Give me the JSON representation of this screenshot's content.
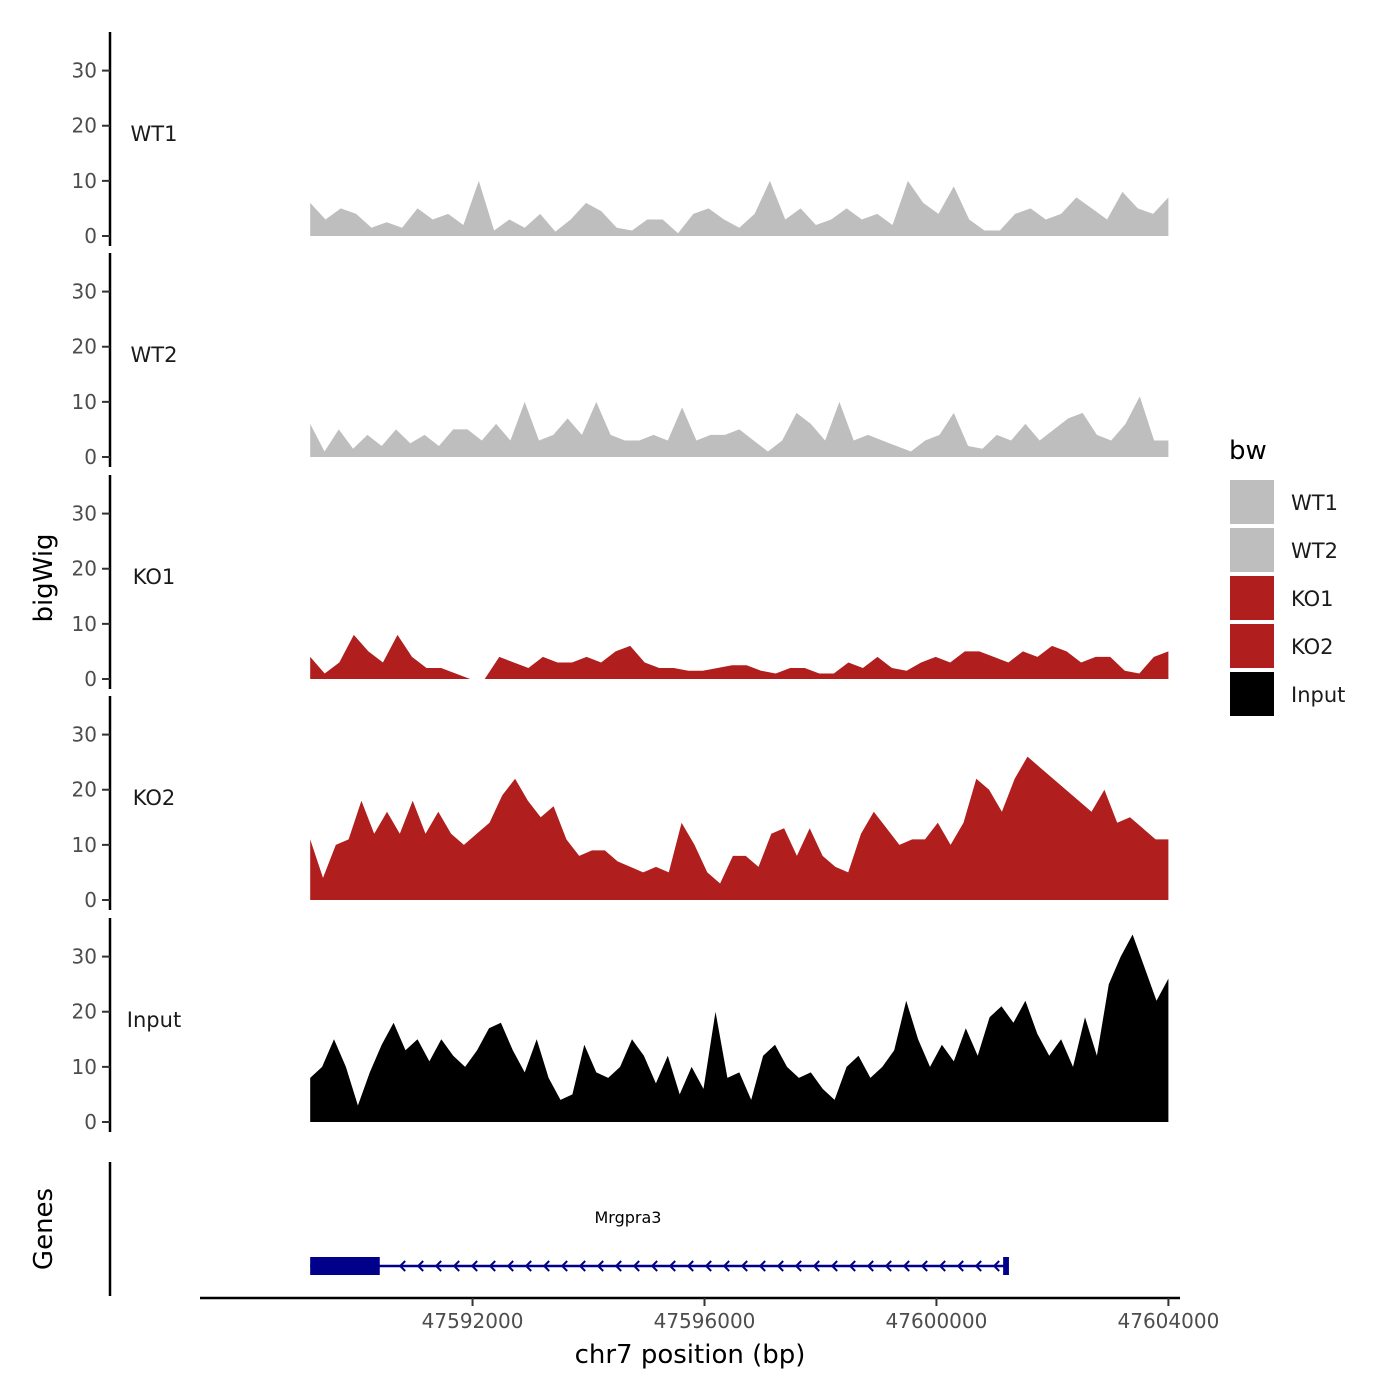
{
  "colors": {
    "WT1": "#bebebe",
    "WT2": "#bebebe",
    "KO1": "#b01e1e",
    "KO2": "#b01e1e",
    "Input": "#000000",
    "gene": "#00008b",
    "axis": "#000000"
  },
  "chart_data": {
    "type": "area",
    "title": "",
    "xlabel": "chr7 position (bp)",
    "ylabel": "bigWig",
    "genes_label": "Genes",
    "x_range": [
      47587300,
      47604200
    ],
    "y_range": [
      0,
      37
    ],
    "x_ticks": [
      47592000,
      47596000,
      47600000,
      47604000
    ],
    "x_tick_labels": [
      "47592000",
      "47596000",
      "47600000",
      "47604000"
    ],
    "y_ticks": [
      0,
      10,
      20,
      30
    ],
    "y_tick_labels": [
      "0",
      "10",
      "20",
      "30"
    ],
    "track_start": 47589200,
    "track_end": 47604000,
    "legend": {
      "title": "bw",
      "entries": [
        "WT1",
        "WT2",
        "KO1",
        "KO2",
        "Input"
      ]
    },
    "series": [
      {
        "name": "WT1",
        "values": [
          6,
          3,
          5,
          4,
          1.5,
          2.5,
          1.5,
          5,
          3,
          4,
          2,
          10,
          1,
          3,
          1.5,
          4,
          0.8,
          3,
          6,
          4.5,
          1.5,
          1,
          3,
          3,
          0.5,
          4,
          5,
          3,
          1.5,
          4,
          10,
          3,
          5,
          2,
          3,
          5,
          3,
          4,
          2,
          10,
          6,
          4,
          9,
          3,
          1,
          1,
          4,
          5,
          3,
          4,
          7,
          5,
          3,
          8,
          5,
          4,
          7
        ]
      },
      {
        "name": "WT2",
        "values": [
          6,
          1,
          5,
          1.5,
          4,
          2,
          5,
          2.5,
          4,
          2,
          5,
          5,
          3,
          6,
          3,
          10,
          3,
          4,
          7,
          4,
          10,
          4,
          3,
          3,
          4,
          3,
          9,
          3,
          4,
          4,
          5,
          3,
          1,
          3,
          8,
          6,
          3,
          10,
          3,
          4,
          3,
          2,
          1,
          3,
          4,
          8,
          2,
          1.5,
          4,
          3,
          6,
          3,
          5,
          7,
          8,
          4,
          3,
          6,
          11,
          3,
          3
        ]
      },
      {
        "name": "KO1",
        "values": [
          4,
          1,
          3,
          8,
          5,
          3,
          8,
          4,
          2,
          2,
          1,
          0,
          0,
          4,
          3,
          2,
          4,
          3,
          3,
          4,
          3,
          5,
          6,
          3,
          2,
          2,
          1.5,
          1.5,
          2,
          2.5,
          2.5,
          1.5,
          1,
          2,
          2,
          1,
          1,
          3,
          2,
          4,
          2,
          1.5,
          3,
          4,
          3,
          5,
          5,
          4,
          3,
          5,
          4,
          6,
          5,
          3,
          4,
          4,
          1.5,
          1,
          4,
          5
        ]
      },
      {
        "name": "KO2",
        "values": [
          11,
          4,
          10,
          11,
          18,
          12,
          16,
          12,
          18,
          12,
          16,
          12,
          10,
          12,
          14,
          19,
          22,
          18,
          15,
          17,
          11,
          8,
          9,
          9,
          7,
          6,
          5,
          6,
          5,
          14,
          10,
          5,
          3,
          8,
          8,
          6,
          12,
          13,
          8,
          13,
          8,
          6,
          5,
          12,
          16,
          13,
          10,
          11,
          11,
          14,
          10,
          14,
          22,
          20,
          16,
          22,
          26,
          24,
          22,
          20,
          18,
          16,
          20,
          14,
          15,
          13,
          11,
          11
        ]
      },
      {
        "name": "Input",
        "values": [
          8,
          10,
          15,
          10,
          3,
          9,
          14,
          18,
          13,
          15,
          11,
          15,
          12,
          10,
          13,
          17,
          18,
          13,
          9,
          15,
          8,
          4,
          5,
          14,
          9,
          8,
          10,
          15,
          12,
          7,
          12,
          5,
          10,
          6,
          20,
          8,
          9,
          4,
          12,
          14,
          10,
          8,
          9,
          6,
          4,
          10,
          12,
          8,
          10,
          13,
          22,
          15,
          10,
          14,
          11,
          17,
          12,
          19,
          21,
          18,
          22,
          16,
          12,
          15,
          10,
          19,
          12,
          25,
          30,
          34,
          28,
          22,
          26
        ]
      }
    ],
    "gene": {
      "name": "Mrgpra3",
      "start": 47589200,
      "end": 47601200,
      "strand": "-",
      "exons": [
        [
          47589200,
          47590400
        ],
        [
          47601150,
          47601250
        ]
      ]
    }
  }
}
